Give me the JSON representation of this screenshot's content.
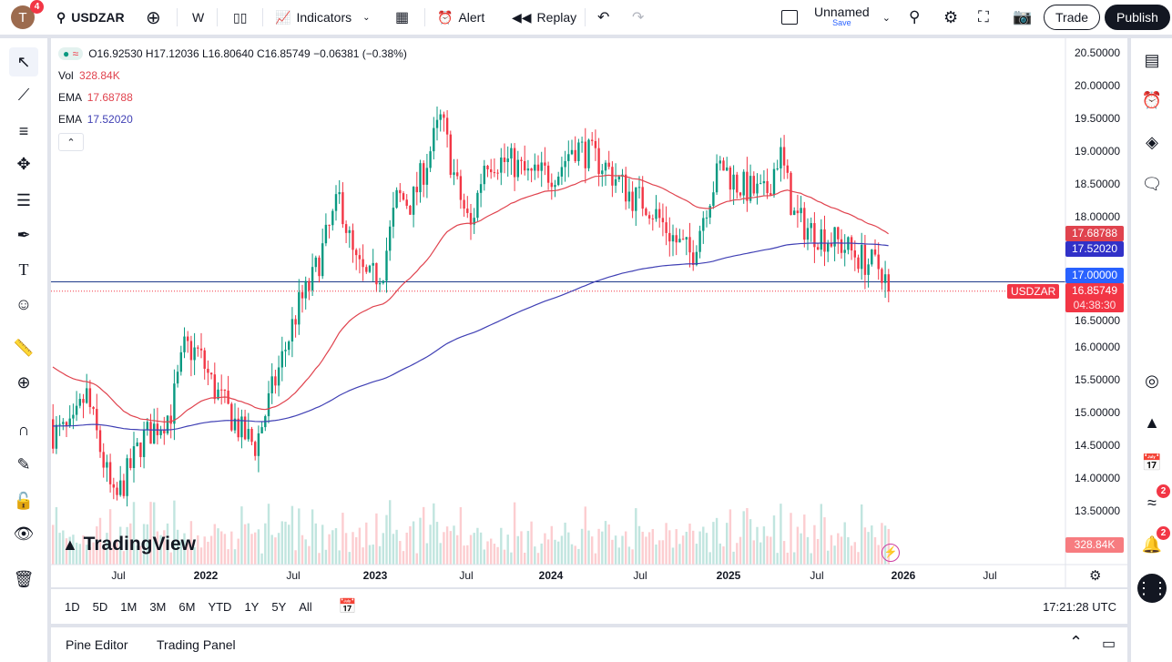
{
  "header": {
    "avatar_letter": "T",
    "avatar_badge": "4",
    "symbol": "USDZAR",
    "interval": "W",
    "indicators": "Indicators",
    "alert": "Alert",
    "replay": "Replay",
    "layout_name": "Unnamed",
    "layout_save": "Save",
    "trade": "Trade",
    "publish": "Publish"
  },
  "legend": {
    "ohlc": "O16.92530 H17.12036 L16.80640 C16.85749 −0.06381 (−0.38%)",
    "vol_label": "Vol",
    "vol_value": "328.84K",
    "ema1_label": "EMA",
    "ema1_value": "17.68788",
    "ema2_label": "EMA",
    "ema2_value": "17.52020"
  },
  "colors": {
    "up": "#089981",
    "down": "#f23645",
    "ema_fast": "#e0434e",
    "ema_slow": "#3f3fb4",
    "line17": "#2962ff"
  },
  "price_axis": {
    "ticks": [
      "20.50000",
      "20.00000",
      "19.50000",
      "19.00000",
      "18.50000",
      "18.00000",
      "16.50000",
      "16.00000",
      "15.50000",
      "15.00000",
      "14.50000",
      "14.00000",
      "13.50000"
    ],
    "labels": {
      "ema_fast": "17.68788",
      "ema_slow": "17.52020",
      "line": "17.00000",
      "last": "16.85749",
      "countdown": "04:38:30",
      "symbol": "USDZAR",
      "volume": "328.84K"
    }
  },
  "time_axis": {
    "ticks": [
      "Jul",
      "2022",
      "Jul",
      "2023",
      "Jul",
      "2024",
      "Jul",
      "2025",
      "Jul",
      "2026",
      "Jul"
    ]
  },
  "watermark": "TradingView",
  "ranges": [
    "1D",
    "5D",
    "1M",
    "3M",
    "6M",
    "YTD",
    "1Y",
    "5Y",
    "All"
  ],
  "clock": "17:21:28 UTC",
  "panel": {
    "pine": "Pine Editor",
    "trading": "Trading Panel"
  },
  "sidebar_badges": {
    "ideas": "2",
    "alerts": "2"
  },
  "chart_data": {
    "type": "candlestick",
    "symbol": "USDZAR",
    "interval": "weekly",
    "ylim": [
      13.3,
      20.6
    ],
    "approx_monthly_close": [
      [
        "2021-03",
        14.7
      ],
      [
        "2021-04",
        15.3
      ],
      [
        "2021-06",
        13.6
      ],
      [
        "2021-08",
        14.6
      ],
      [
        "2021-10",
        15.0
      ],
      [
        "2021-11",
        16.0
      ],
      [
        "2021-12",
        15.9
      ],
      [
        "2022-01",
        15.4
      ],
      [
        "2022-03",
        14.7
      ],
      [
        "2022-04",
        14.5
      ],
      [
        "2022-06",
        15.9
      ],
      [
        "2022-07",
        16.6
      ],
      [
        "2022-08",
        17.0
      ],
      [
        "2022-10",
        18.3
      ],
      [
        "2022-11",
        17.3
      ],
      [
        "2022-12",
        17.0
      ],
      [
        "2023-01",
        17.2
      ],
      [
        "2023-02",
        18.3
      ],
      [
        "2023-03",
        18.2
      ],
      [
        "2023-05",
        19.5
      ],
      [
        "2023-06",
        18.5
      ],
      [
        "2023-07",
        17.8
      ],
      [
        "2023-08",
        18.9
      ],
      [
        "2023-10",
        18.8
      ],
      [
        "2023-11",
        18.6
      ],
      [
        "2024-01",
        18.7
      ],
      [
        "2024-02",
        19.1
      ],
      [
        "2024-04",
        18.8
      ],
      [
        "2024-06",
        18.3
      ],
      [
        "2024-07",
        18.2
      ],
      [
        "2024-09",
        17.6
      ],
      [
        "2024-10",
        17.4
      ],
      [
        "2024-11",
        18.2
      ],
      [
        "2024-12",
        18.8
      ],
      [
        "2025-01",
        18.5
      ],
      [
        "2025-03",
        18.3
      ],
      [
        "2025-04",
        19.0
      ],
      [
        "2025-05",
        18.0
      ],
      [
        "2025-06",
        17.8
      ],
      [
        "2025-08",
        17.6
      ],
      [
        "2025-10",
        17.3
      ],
      [
        "2025-11",
        17.2
      ],
      [
        "2025-12",
        16.86
      ]
    ],
    "horizontal_line": 17.0,
    "last_price": 16.85749
  }
}
